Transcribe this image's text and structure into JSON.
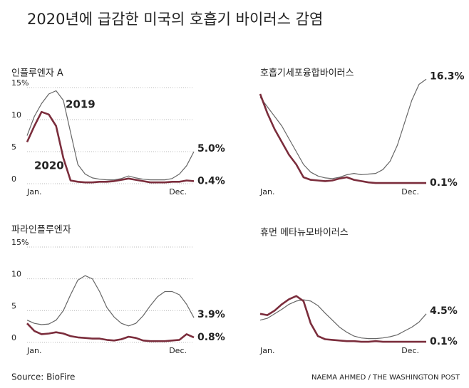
{
  "title": "2020년에 급감한 미국의 호흡기 바이러스 감염",
  "source": "Source: BioFire",
  "credit": "NAEMA AHMED / THE WASHINGTON POST",
  "chart_data": [
    {
      "type": "line",
      "title": "인플루엔자 A",
      "categories": [
        "Jan.",
        null,
        null,
        null,
        null,
        null,
        null,
        null,
        null,
        null,
        null,
        null,
        null,
        null,
        null,
        null,
        null,
        null,
        null,
        null,
        null,
        null,
        null,
        "Dec."
      ],
      "ylim": [
        0,
        15
      ],
      "yticks": [
        0,
        5,
        10,
        {
          "value": 15,
          "label": "15%"
        }
      ],
      "grid": true,
      "series": [
        {
          "name": "2019",
          "color": "#666666",
          "values": [
            7.5,
            10.5,
            12.5,
            14,
            14.5,
            13,
            8,
            3,
            1.5,
            0.9,
            0.7,
            0.6,
            0.6,
            0.8,
            1.2,
            0.9,
            0.7,
            0.6,
            0.6,
            0.6,
            0.8,
            1.5,
            2.8,
            5.0
          ],
          "value_labels": [
            null,
            null,
            null,
            null,
            null,
            null,
            null,
            null,
            null,
            null,
            null,
            null,
            null,
            null,
            null,
            null,
            null,
            null,
            null,
            null,
            null,
            null,
            null,
            "5.0%"
          ]
        },
        {
          "name": "2020",
          "color": "#7b2d3c",
          "values": [
            6.5,
            9,
            11.2,
            10.8,
            9,
            4,
            0.5,
            0.3,
            0.2,
            0.2,
            0.3,
            0.3,
            0.4,
            0.6,
            0.8,
            0.6,
            0.4,
            0.2,
            0.2,
            0.2,
            0.3,
            0.3,
            0.5,
            0.4
          ],
          "value_labels": [
            null,
            null,
            null,
            null,
            null,
            null,
            null,
            null,
            null,
            null,
            null,
            null,
            null,
            null,
            null,
            null,
            null,
            null,
            null,
            null,
            null,
            null,
            null,
            "0.4%"
          ]
        }
      ]
    },
    {
      "type": "line",
      "title": "호흡기세포융합바이러스",
      "categories": [
        "Jan.",
        null,
        null,
        null,
        null,
        null,
        null,
        null,
        null,
        null,
        null,
        null,
        null,
        null,
        null,
        null,
        null,
        null,
        null,
        null,
        null,
        null,
        null,
        "Dec."
      ],
      "ylim": [
        0,
        15
      ],
      "series": [
        {
          "color": "#666666",
          "values": [
            13.5,
            12,
            10.5,
            9,
            7,
            5,
            3,
            1.8,
            1.2,
            0.9,
            0.8,
            1,
            1.4,
            1.6,
            1.4,
            1.5,
            1.6,
            2.2,
            3.5,
            6,
            9.5,
            13,
            15.5,
            16.3
          ],
          "value_labels": [
            null,
            null,
            null,
            null,
            null,
            null,
            null,
            null,
            null,
            null,
            null,
            null,
            null,
            null,
            null,
            null,
            null,
            null,
            null,
            null,
            null,
            null,
            null,
            "16.3%"
          ]
        },
        {
          "color": "#7b2d3c",
          "values": [
            14,
            11,
            8.5,
            6.5,
            4.5,
            3,
            1,
            0.6,
            0.5,
            0.4,
            0.5,
            0.8,
            1,
            0.6,
            0.4,
            0.2,
            0.1,
            0.1,
            0.1,
            0.1,
            0.1,
            0.1,
            0.1,
            0.1
          ],
          "value_labels": [
            null,
            null,
            null,
            null,
            null,
            null,
            null,
            null,
            null,
            null,
            null,
            null,
            null,
            null,
            null,
            null,
            null,
            null,
            null,
            null,
            null,
            null,
            null,
            "0.1%"
          ]
        }
      ]
    },
    {
      "type": "line",
      "title": "파라인플루엔자",
      "categories": [
        "Jan.",
        null,
        null,
        null,
        null,
        null,
        null,
        null,
        null,
        null,
        null,
        null,
        null,
        null,
        null,
        null,
        null,
        null,
        null,
        null,
        null,
        null,
        null,
        "Dec."
      ],
      "ylim": [
        0,
        15
      ],
      "yticks": [
        0,
        5,
        10,
        {
          "value": 15,
          "label": "15%"
        }
      ],
      "grid": true,
      "series": [
        {
          "color": "#666666",
          "values": [
            3.5,
            3.0,
            2.8,
            2.9,
            3.5,
            5,
            7.5,
            9.8,
            10.5,
            10,
            8,
            5.5,
            4,
            3,
            2.6,
            3,
            4.2,
            5.8,
            7.2,
            8,
            8,
            7.5,
            6,
            3.9
          ],
          "value_labels": [
            null,
            null,
            null,
            null,
            null,
            null,
            null,
            null,
            null,
            null,
            null,
            null,
            null,
            null,
            null,
            null,
            null,
            null,
            null,
            null,
            null,
            null,
            null,
            "3.9%"
          ]
        },
        {
          "color": "#7b2d3c",
          "values": [
            3,
            1.8,
            1.3,
            1.4,
            1.6,
            1.4,
            1,
            0.8,
            0.7,
            0.6,
            0.6,
            0.4,
            0.3,
            0.5,
            0.9,
            0.7,
            0.3,
            0.2,
            0.2,
            0.2,
            0.3,
            0.4,
            1.3,
            0.8
          ],
          "value_labels": [
            null,
            null,
            null,
            null,
            null,
            null,
            null,
            null,
            null,
            null,
            null,
            null,
            null,
            null,
            null,
            null,
            null,
            null,
            null,
            null,
            null,
            null,
            null,
            "0.8%"
          ]
        }
      ]
    },
    {
      "type": "line",
      "title": "휴먼 메타뉴모바이러스",
      "categories": [
        "Jan.",
        null,
        null,
        null,
        null,
        null,
        null,
        null,
        null,
        null,
        null,
        null,
        null,
        null,
        null,
        null,
        null,
        null,
        null,
        null,
        null,
        null,
        null,
        "Dec."
      ],
      "ylim": [
        0,
        15
      ],
      "series": [
        {
          "color": "#666666",
          "values": [
            3.5,
            3.8,
            4.5,
            5.2,
            6,
            6.5,
            6.7,
            6.5,
            5.8,
            4.6,
            3.5,
            2.4,
            1.6,
            1,
            0.7,
            0.6,
            0.6,
            0.7,
            0.9,
            1.2,
            1.8,
            2.4,
            3.2,
            4.5
          ],
          "value_labels": [
            null,
            null,
            null,
            null,
            null,
            null,
            null,
            null,
            null,
            null,
            null,
            null,
            null,
            null,
            null,
            null,
            null,
            null,
            null,
            null,
            null,
            null,
            null,
            "4.5%"
          ]
        },
        {
          "color": "#7b2d3c",
          "values": [
            4.5,
            4.3,
            5,
            6,
            6.8,
            7.3,
            6.5,
            3,
            1,
            0.5,
            0.4,
            0.3,
            0.2,
            0.2,
            0.1,
            0.1,
            0.2,
            0.1,
            0.1,
            0.1,
            0.1,
            0.1,
            0.1,
            0.1
          ],
          "value_labels": [
            null,
            null,
            null,
            null,
            null,
            null,
            null,
            null,
            null,
            null,
            null,
            null,
            null,
            null,
            null,
            null,
            null,
            null,
            null,
            null,
            null,
            null,
            null,
            "0.1%"
          ]
        }
      ]
    }
  ]
}
